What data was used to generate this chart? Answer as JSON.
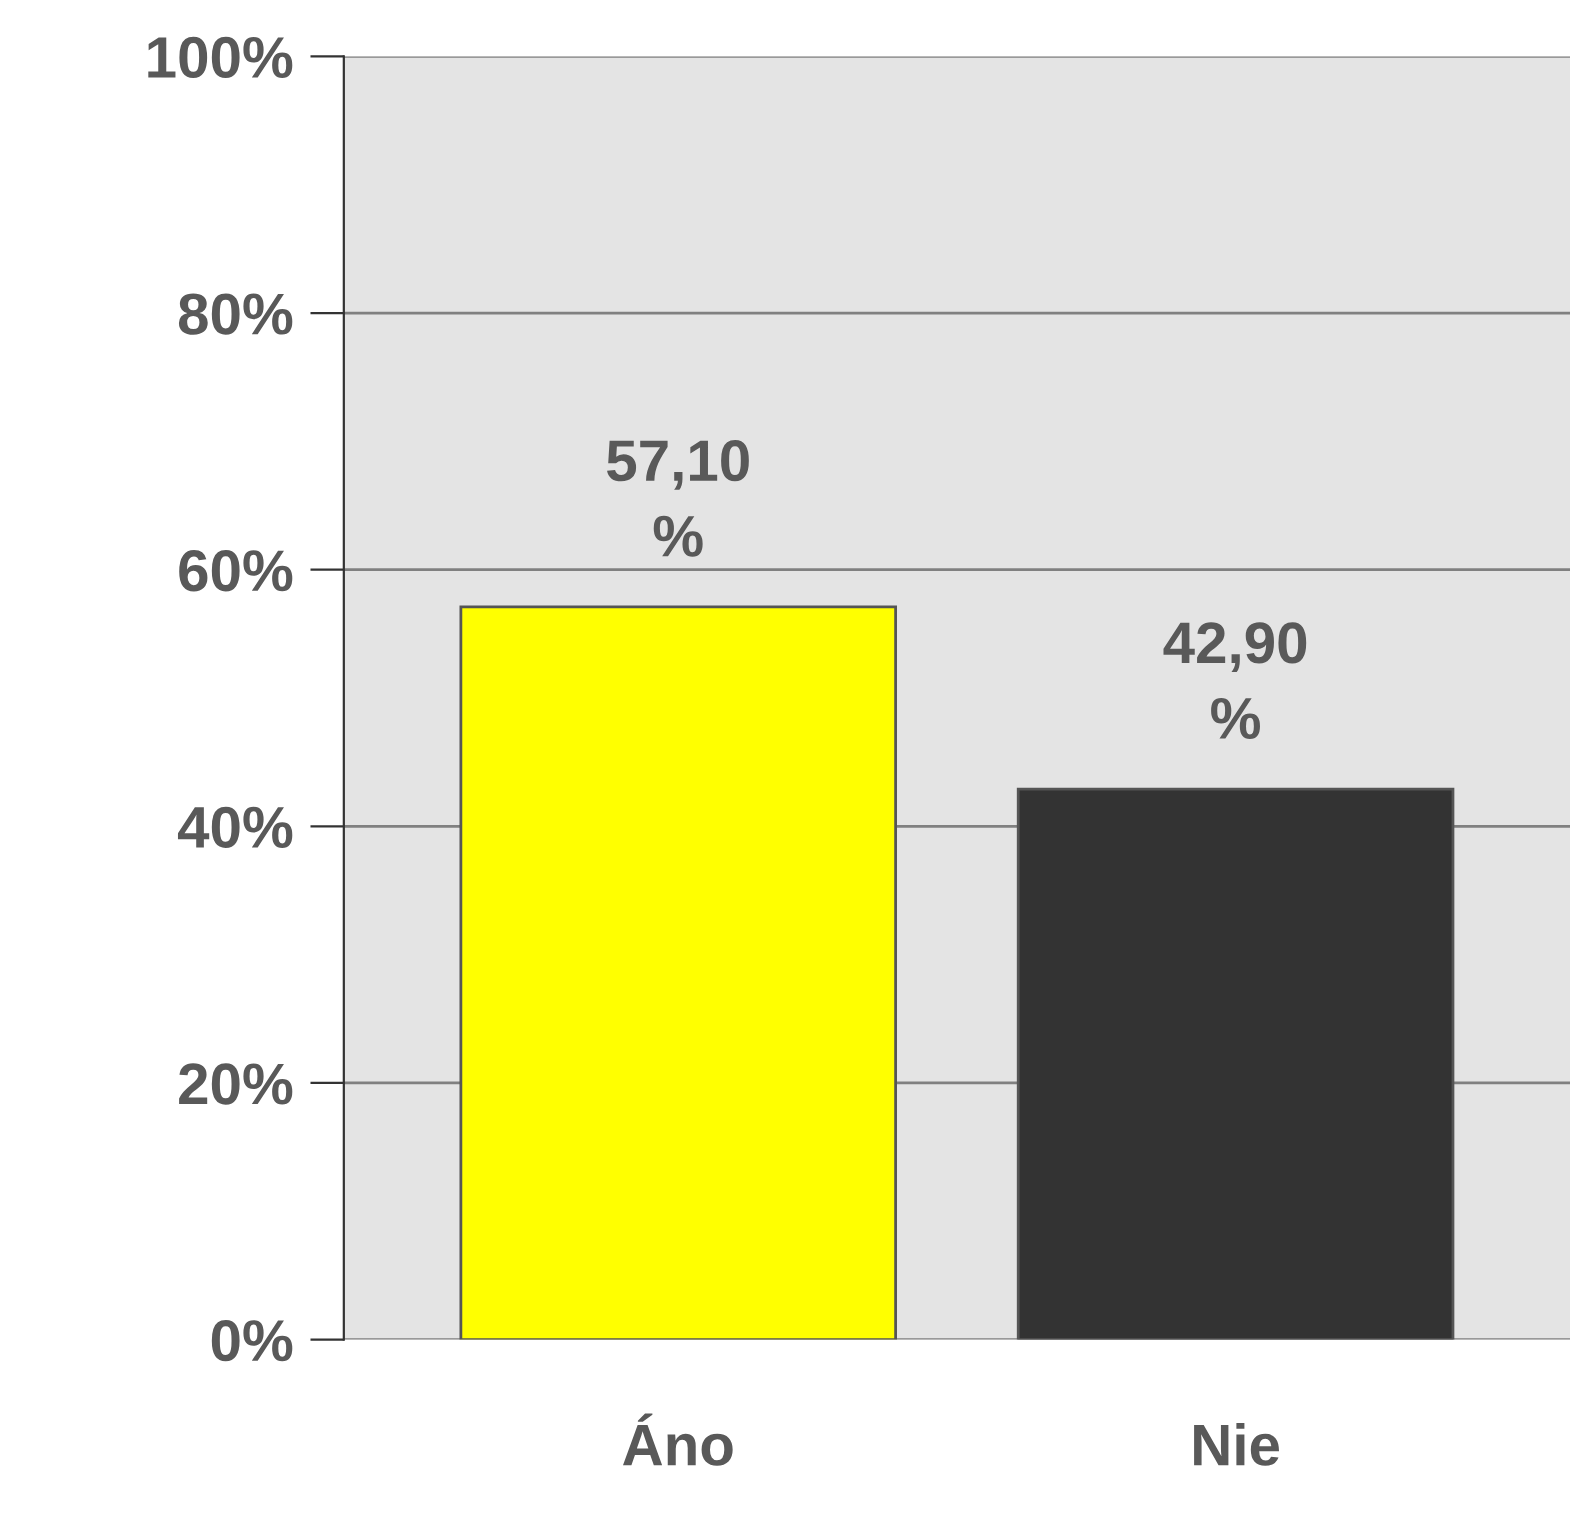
{
  "chart_data": {
    "type": "bar",
    "categories": [
      "Áno",
      "Nie"
    ],
    "values": [
      57.1,
      42.9
    ],
    "colors": [
      "#ffff00",
      "#333333"
    ],
    "value_labels": [
      "57,10 %",
      "42,90 %"
    ],
    "ylim": [
      0,
      100
    ],
    "yticks": [
      {
        "value": 0,
        "label": "0%"
      },
      {
        "value": 20,
        "label": "20%"
      },
      {
        "value": 40,
        "label": "40%"
      },
      {
        "value": 60,
        "label": "60%"
      },
      {
        "value": 80,
        "label": "80%"
      },
      {
        "value": 100,
        "label": "100%"
      }
    ],
    "grid": "y",
    "legend": false
  }
}
